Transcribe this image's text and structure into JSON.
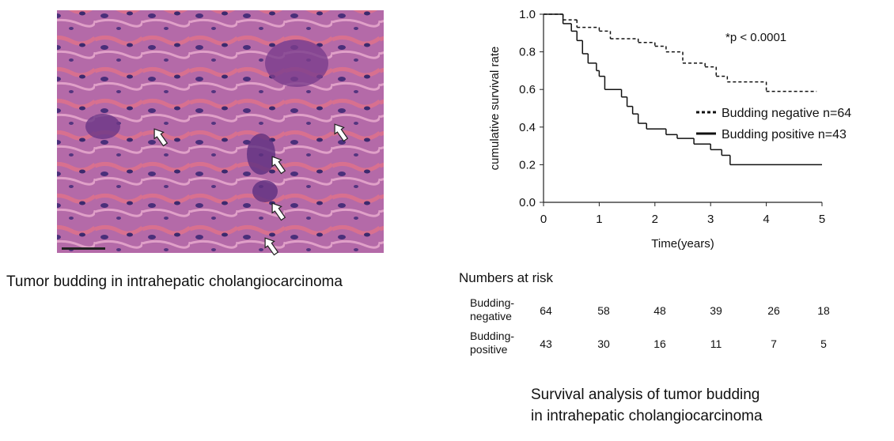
{
  "image": {
    "caption": "Tumor budding in intrahepatic cholangiocarcinoma"
  },
  "chart_data": {
    "type": "step",
    "xlabel": "Time(years)",
    "ylabel": "cumulative survival rate",
    "annotation": "*p < 0.0001",
    "xlim": [
      0,
      5
    ],
    "ylim": [
      0,
      1
    ],
    "xticks": [
      0,
      1,
      2,
      3,
      4,
      5
    ],
    "yticks": [
      {
        "value": 0,
        "label": "0.0"
      },
      {
        "value": 0.2,
        "label": "0.2"
      },
      {
        "value": 0.4,
        "label": "0.4"
      },
      {
        "value": 0.6,
        "label": "0.6"
      },
      {
        "value": 0.8,
        "label": "0.8"
      },
      {
        "value": 1,
        "label": "1.0"
      }
    ],
    "series": [
      {
        "name": "Budding negative n=64",
        "color": "#111111",
        "dashed": true,
        "x": [
          0,
          0.35,
          0.6,
          1.0,
          1.2,
          1.7,
          2.0,
          2.2,
          2.5,
          2.9,
          3.1,
          3.3,
          4.0,
          4.9
        ],
        "values": [
          1.0,
          0.97,
          0.93,
          0.91,
          0.87,
          0.85,
          0.83,
          0.8,
          0.74,
          0.72,
          0.67,
          0.64,
          0.59,
          0.59
        ]
      },
      {
        "name": "Budding positive n=43",
        "color": "#111111",
        "dashed": false,
        "x": [
          0,
          0.35,
          0.5,
          0.6,
          0.7,
          0.8,
          0.95,
          1.0,
          1.1,
          1.4,
          1.5,
          1.6,
          1.7,
          1.85,
          2.2,
          2.4,
          2.7,
          3.0,
          3.2,
          3.35,
          5.0
        ],
        "values": [
          1.0,
          0.95,
          0.91,
          0.86,
          0.79,
          0.74,
          0.7,
          0.67,
          0.6,
          0.56,
          0.51,
          0.47,
          0.42,
          0.39,
          0.36,
          0.34,
          0.31,
          0.28,
          0.25,
          0.2,
          0.2
        ]
      }
    ]
  },
  "risk_table": {
    "title": "Numbers at risk",
    "rows": [
      {
        "label": [
          "Budding-",
          "negative"
        ],
        "counts": [
          "64",
          "58",
          "48",
          "39",
          "26",
          "18"
        ]
      },
      {
        "label": [
          "Budding-",
          "positive"
        ],
        "counts": [
          "43",
          "30",
          "16",
          "11",
          "7",
          "5"
        ]
      }
    ]
  },
  "caption": [
    "Survival analysis of tumor budding",
    "in intrahepatic cholangiocarcinoma"
  ]
}
